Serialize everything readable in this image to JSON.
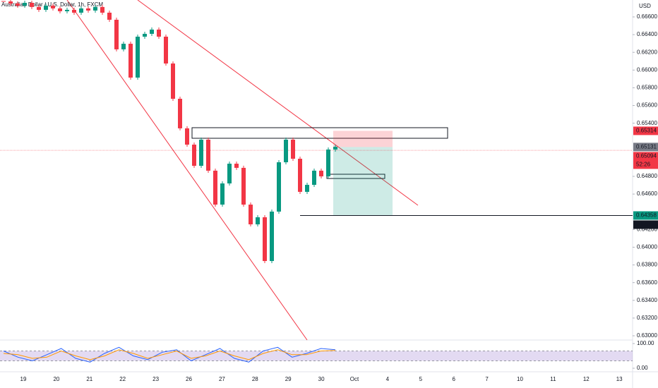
{
  "chart_data": {
    "type": "candlestick",
    "title": "Australian Dollar / U.S. Dollar, 1h, FXCM",
    "currency": "USD",
    "up_color": "#089981",
    "down_color": "#f23645",
    "values": [
      0.66775,
      0.66751,
      0.66727,
      0.66759,
      0.66712,
      0.6668,
      0.66727,
      0.66696,
      0.66664,
      0.6668,
      0.66648,
      0.66696,
      0.66672,
      0.66712,
      0.66648,
      0.66568,
      0.66234,
      0.66297,
      0.65915,
      0.66377,
      0.66409,
      0.66457,
      0.66377,
      0.66074,
      0.65676,
      0.65342,
      0.65158,
      0.64919,
      0.65214,
      0.64864,
      0.64481,
      0.6472,
      0.64943,
      0.64896,
      0.64481,
      0.64258,
      0.64338,
      0.63844,
      0.64402,
      0.64959,
      0.65214,
      0.64999,
      0.64625,
      0.64704,
      0.64864,
      0.648,
      0.65103,
      0.65134
    ],
    "ylim": [
      0.62968,
      0.66791
    ],
    "yticks": [
      {
        "value": 0.666,
        "label": "0.66600"
      },
      {
        "value": 0.664,
        "label": "0.66400"
      },
      {
        "value": 0.662,
        "label": "0.66200"
      },
      {
        "value": 0.66,
        "label": "0.66000"
      },
      {
        "value": 0.658,
        "label": "0.65800"
      },
      {
        "value": 0.656,
        "label": "0.65600"
      },
      {
        "value": 0.654,
        "label": "0.65400"
      },
      {
        "value": 0.648,
        "label": "0.64800"
      },
      {
        "value": 0.646,
        "label": "0.64600"
      },
      {
        "value": 0.642,
        "label": "0.64200"
      },
      {
        "value": 0.64,
        "label": "0.64000"
      },
      {
        "value": 0.638,
        "label": "0.63800"
      },
      {
        "value": 0.636,
        "label": "0.63600"
      },
      {
        "value": 0.634,
        "label": "0.63400"
      },
      {
        "value": 0.632,
        "label": "0.63200"
      },
      {
        "value": 0.63,
        "label": "0.63000"
      }
    ],
    "x_labels": [
      "19",
      "20",
      "21",
      "22",
      "23",
      "26",
      "27",
      "28",
      "29",
      "30",
      "Oct",
      "4",
      "5",
      "6",
      "7",
      "10",
      "11",
      "12",
      "13"
    ],
    "price_labels": [
      {
        "value": 0.65314,
        "color": "#f23645"
      },
      {
        "value": 0.65131,
        "color": "#787b86"
      },
      {
        "value": 0.65094,
        "color": "#f23645",
        "timer": "52:26"
      },
      {
        "value": 0.64358,
        "color": "#089981"
      },
      {
        "value": 0.64358,
        "color": "#131722"
      }
    ],
    "position": {
      "stop": 0.65314,
      "entry": 0.65131,
      "target": 0.64358
    },
    "last_price": 0.65094,
    "rsi": {
      "ylim": [
        0,
        100
      ],
      "yticks": [
        {
          "value": 100,
          "label": "100.00"
        },
        {
          "value": 0,
          "label": "0.00"
        }
      ],
      "band": [
        30,
        70
      ],
      "series": [
        {
          "color": "#2962ff",
          "values": [
            70,
            45,
            30,
            55,
            80,
            40,
            25,
            60,
            85,
            50,
            35,
            65,
            75,
            30,
            55,
            80,
            40,
            25,
            70,
            85,
            45,
            60,
            80,
            75
          ]
        },
        {
          "color": "#ff9800",
          "values": [
            60,
            55,
            40,
            45,
            70,
            50,
            35,
            50,
            75,
            60,
            40,
            55,
            70,
            40,
            50,
            70,
            50,
            35,
            60,
            75,
            55,
            55,
            70,
            72
          ]
        }
      ]
    }
  }
}
